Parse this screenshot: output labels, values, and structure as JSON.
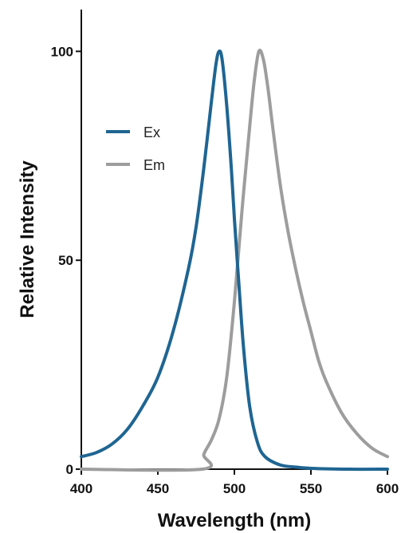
{
  "chart_data": {
    "type": "line",
    "title": "",
    "xlabel": "Wavelength (nm)",
    "ylabel": "Relative Intensity",
    "xlim": [
      400,
      600
    ],
    "ylim": [
      0,
      110
    ],
    "x_ticks": [
      400,
      450,
      500,
      550,
      600
    ],
    "y_ticks": [
      0,
      50,
      100
    ],
    "grid": false,
    "legend_position": "upper-left",
    "series": [
      {
        "name": "Ex",
        "color": "#1f6592",
        "points": [
          [
            400,
            3
          ],
          [
            410,
            4
          ],
          [
            420,
            6
          ],
          [
            430,
            9.5
          ],
          [
            440,
            15
          ],
          [
            450,
            22
          ],
          [
            460,
            33
          ],
          [
            470,
            48
          ],
          [
            475,
            58
          ],
          [
            480,
            72
          ],
          [
            485,
            88
          ],
          [
            488,
            97
          ],
          [
            490,
            100
          ],
          [
            492,
            98
          ],
          [
            495,
            87
          ],
          [
            498,
            72
          ],
          [
            500,
            60
          ],
          [
            503,
            44
          ],
          [
            506,
            29
          ],
          [
            510,
            15
          ],
          [
            515,
            6.5
          ],
          [
            520,
            3
          ],
          [
            530,
            1
          ],
          [
            540,
            0.5
          ],
          [
            550,
            0.2
          ],
          [
            575,
            0
          ],
          [
            600,
            0
          ]
        ]
      },
      {
        "name": "Em",
        "color": "#9d9d9d",
        "points": [
          [
            479,
            0
          ],
          [
            480,
            3.5
          ],
          [
            485,
            7
          ],
          [
            490,
            12
          ],
          [
            495,
            22
          ],
          [
            500,
            40
          ],
          [
            505,
            62
          ],
          [
            510,
            82
          ],
          [
            513,
            93
          ],
          [
            516,
            100
          ],
          [
            519,
            98
          ],
          [
            522,
            91
          ],
          [
            525,
            82
          ],
          [
            530,
            68
          ],
          [
            535,
            57
          ],
          [
            540,
            48
          ],
          [
            545,
            40
          ],
          [
            550,
            33
          ],
          [
            555,
            26
          ],
          [
            560,
            21
          ],
          [
            570,
            13.5
          ],
          [
            580,
            8.5
          ],
          [
            590,
            5
          ],
          [
            600,
            3
          ]
        ]
      }
    ]
  }
}
